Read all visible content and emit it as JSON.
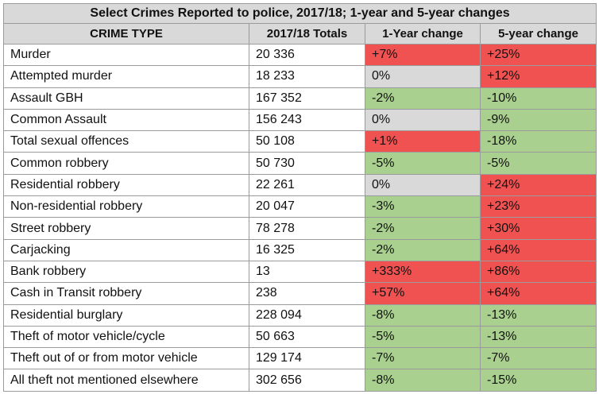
{
  "chart_data": {
    "type": "table",
    "title": "Select Crimes Reported to police, 2017/18; 1-year and 5-year changes",
    "columns": [
      "CRIME TYPE",
      "2017/18 Totals",
      "1-Year change",
      "5-year change"
    ],
    "rows": [
      {
        "crime": "Murder",
        "total": "20 336",
        "y1": "+7%",
        "y5": "+25%"
      },
      {
        "crime": "Attempted murder",
        "total": "18 233",
        "y1": "0%",
        "y5": "+12%"
      },
      {
        "crime": "Assault GBH",
        "total": "167 352",
        "y1": "-2%",
        "y5": "-10%"
      },
      {
        "crime": "Common Assault",
        "total": "156 243",
        "y1": "0%",
        "y5": "-9%"
      },
      {
        "crime": "Total sexual offences",
        "total": "50 108",
        "y1": "+1%",
        "y5": "-18%"
      },
      {
        "crime": "Common robbery",
        "total": "50 730",
        "y1": "-5%",
        "y5": "-5%"
      },
      {
        "crime": "Residential robbery",
        "total": "22 261",
        "y1": "0%",
        "y5": "+24%"
      },
      {
        "crime": "Non-residential robbery",
        "total": "20 047",
        "y1": "-3%",
        "y5": "+23%"
      },
      {
        "crime": "Street robbery",
        "total": "78 278",
        "y1": "-2%",
        "y5": "+30%"
      },
      {
        "crime": "Carjacking",
        "total": "16 325",
        "y1": "-2%",
        "y5": "+64%"
      },
      {
        "crime": "Bank robbery",
        "total": "13",
        "y1": "+333%",
        "y5": "+86%"
      },
      {
        "crime": "Cash in Transit robbery",
        "total": "238",
        "y1": "+57%",
        "y5": "+64%"
      },
      {
        "crime": "Residential burglary",
        "total": "228 094",
        "y1": "-8%",
        "y5": "-13%"
      },
      {
        "crime": "Theft of motor vehicle/cycle",
        "total": "50 663",
        "y1": "-5%",
        "y5": "-13%"
      },
      {
        "crime": "Theft out of or from motor vehicle",
        "total": "129 174",
        "y1": "-7%",
        "y5": "-7%"
      },
      {
        "crime": "All theft not mentioned elsewhere",
        "total": "302 656",
        "y1": "-8%",
        "y5": "-15%"
      }
    ]
  },
  "colors": {
    "increase": "#f05252",
    "decrease": "#a9d08e",
    "nochange": "#d9d9d9",
    "header": "#d9d9d9"
  }
}
